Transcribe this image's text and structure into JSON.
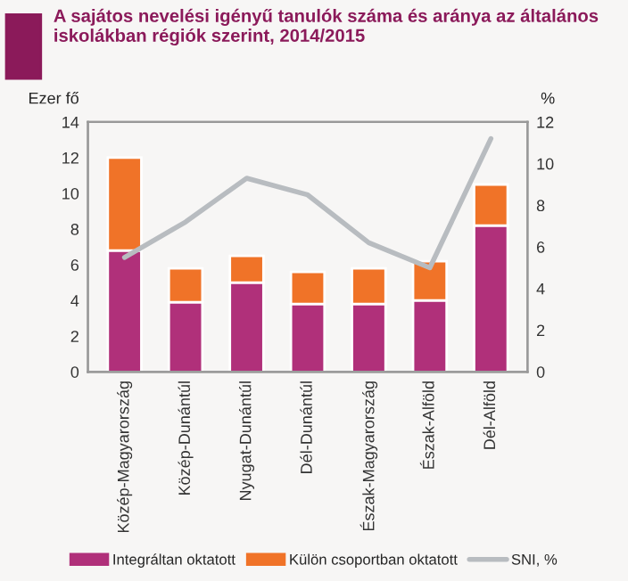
{
  "chart_data": {
    "type": "bar",
    "title": "A sajátos nevelési igényű tanulók száma és aránya az általános iskolákban régiók szerint, 2014/2015",
    "ylabel": "Ezer fő",
    "y2label": "%",
    "categories": [
      "Közép-Magyarország",
      "Közép-Dunántúl",
      "Nyugat-Dunántúl",
      "Dél-Dunántúl",
      "Észak-Magyarország",
      "Észak-Alföld",
      "Dél-Alföld"
    ],
    "stacked": true,
    "series": [
      {
        "name": "Integráltan oktatott",
        "color": "#b0307a",
        "values": [
          6.8,
          3.9,
          5.0,
          3.8,
          3.8,
          4.0,
          8.2
        ]
      },
      {
        "name": "Külön csoportban oktatott",
        "color": "#f07328",
        "values": [
          5.2,
          1.9,
          1.5,
          1.8,
          2.0,
          2.2,
          2.3
        ]
      },
      {
        "name": "SNI, %",
        "type": "line",
        "axis": "y2",
        "color": "#b8bcc0",
        "values": [
          5.5,
          7.2,
          9.3,
          8.5,
          6.2,
          5.0,
          11.2
        ]
      }
    ],
    "ylim": [
      0,
      14
    ],
    "yticks": [
      0,
      2,
      4,
      6,
      8,
      10,
      12,
      14
    ],
    "y2lim": [
      0,
      12
    ],
    "y2ticks": [
      0,
      2,
      4,
      6,
      8,
      10,
      12
    ],
    "grid": false,
    "legend": "bottom"
  }
}
